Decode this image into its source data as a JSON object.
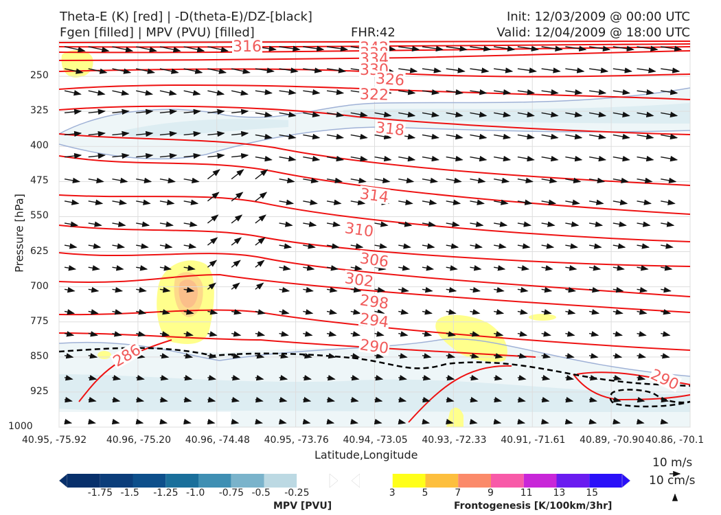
{
  "header": {
    "line1_left": "Theta-E (K) [red] | -D(theta-E)/DZ-[black]",
    "line2_left": "Fgen [filled] | MPV (PVU) [filled]",
    "fhr": "FHR:42",
    "init": "Init: 12/03/2009 @ 00:00 UTC",
    "valid": "Valid: 12/04/2009 @ 18:00 UTC"
  },
  "chart_data": {
    "type": "cross-section",
    "xlabel": "Latitude,Longitude",
    "ylabel": "Pressure [hPa]",
    "ylim": [
      1000,
      175
    ],
    "y_ticks": [
      "250",
      "325",
      "400",
      "475",
      "550",
      "625",
      "700",
      "775",
      "850",
      "925",
      "1000"
    ],
    "x_ticks": [
      "40.95, -75.92",
      "40.96, -75.20",
      "40.96, -74.48",
      "40.95, -73.76",
      "40.94, -73.05",
      "40.93, -72.33",
      "40.91, -71.61",
      "40.89, -70.90",
      "40.86, -70.1"
    ],
    "theta_e_contours_K": [
      "316",
      "342",
      "338",
      "334",
      "330",
      "326",
      "322",
      "318",
      "314",
      "310",
      "306",
      "302",
      "298",
      "294",
      "290",
      "286",
      "290"
    ],
    "theta_e_color": "#ee1111",
    "grid": true,
    "mpv_colorbar": {
      "title": "MPV [PVU]",
      "labels": [
        "-1.75",
        "-1.5",
        "-1.25",
        "-1.0",
        "-0.75",
        "-0.5",
        "-0.25"
      ],
      "colors": [
        "#08306b",
        "#0b3d7a",
        "#0d4f8b",
        "#1a6f9b",
        "#3f8fb3",
        "#7ab3cb",
        "#bcd9e3",
        "#ffffff"
      ]
    },
    "fgen_colorbar": {
      "title": "Frontogenesis [K/100km/3hr]",
      "labels": [
        "3",
        "5",
        "7",
        "9",
        "11",
        "13",
        "15"
      ],
      "colors": [
        "#ffffff",
        "#ffff1a",
        "#fdbf3e",
        "#fb8a6a",
        "#f85aa8",
        "#c826d8",
        "#6a1cf0",
        "#2a10f8"
      ]
    },
    "wind_reference": [
      "10 m/s",
      "10 cm/s"
    ]
  }
}
